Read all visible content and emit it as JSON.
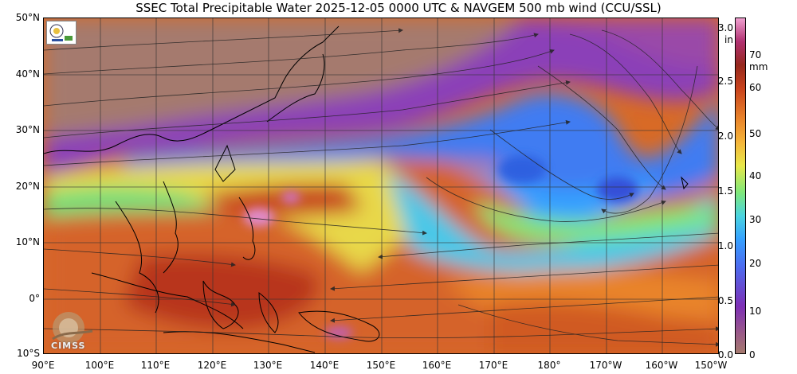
{
  "title": "SSEC Total Precipitable Water  2025-12-05 0000 UTC & NAVGEM 500 mb wind (CCU/SSL)",
  "lat_labels": [
    "50°N",
    "40°N",
    "30°N",
    "20°N",
    "10°N",
    "0°",
    "10°S"
  ],
  "lon_labels": [
    "90°E",
    "100°E",
    "110°E",
    "120°E",
    "130°E",
    "140°E",
    "150°E",
    "160°E",
    "170°E",
    "180°",
    "170°W",
    "160°W",
    "150°W"
  ],
  "colorbar": {
    "inch_unit": "in",
    "mm_unit": "mm",
    "inch_ticks": [
      "3.0",
      "2.5",
      "2.0",
      "1.5",
      "1.0",
      "0.5",
      "0.0"
    ],
    "mm_ticks": [
      "70",
      "60",
      "50",
      "40",
      "30",
      "20",
      "10",
      "0"
    ]
  },
  "watermark": "CIMSS",
  "colors": {
    "very_dry": "#a57a6e",
    "dry": "#7d2fb5",
    "moderate": "#35a0ff",
    "moist": "#e8e84a",
    "wet": "#e9842b",
    "very_wet": "#c9431d",
    "extreme": "#f0a0d0"
  },
  "icons": [
    "ssec-logo-icon",
    "cimss-logo-icon"
  ]
}
